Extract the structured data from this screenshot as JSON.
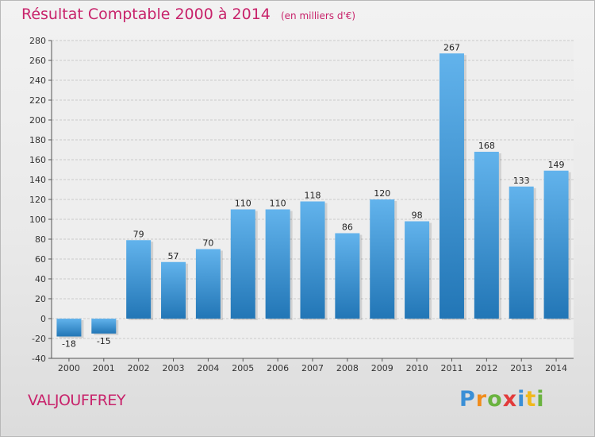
{
  "header": {
    "title": "Résultat Comptable 2000 à 2014",
    "unit": "(en milliers d'€)"
  },
  "footer": {
    "place_name": "VALJOUFFREY",
    "logo_letters": [
      "P",
      "r",
      "o",
      "x",
      "i",
      "t",
      "i"
    ],
    "logo_colors": [
      "#3a8fd6",
      "#f08c1c",
      "#6ab33f",
      "#e23b3b",
      "#3a8fd6",
      "#f0b81c",
      "#6ab33f"
    ]
  },
  "colors": {
    "title": "#c8236b",
    "bar_light": "#62b3ec",
    "bar_dark": "#2276b6",
    "grid": "#c9c9c9"
  },
  "chart_data": {
    "type": "bar",
    "categories": [
      "2000",
      "2001",
      "2002",
      "2003",
      "2004",
      "2005",
      "2006",
      "2007",
      "2008",
      "2009",
      "2010",
      "2011",
      "2012",
      "2013",
      "2014"
    ],
    "values": [
      -18,
      -15,
      79,
      57,
      70,
      110,
      110,
      118,
      86,
      120,
      98,
      267,
      168,
      133,
      149
    ],
    "title": "Résultat Comptable 2000 à 2014",
    "subtitle": "(en milliers d'€)",
    "xlabel": "",
    "ylabel": "",
    "ylim": [
      -40,
      280
    ],
    "yticks": [
      -40,
      -20,
      0,
      20,
      40,
      60,
      80,
      100,
      120,
      140,
      160,
      180,
      200,
      220,
      240,
      260,
      280
    ],
    "grid": true,
    "legend": "none"
  }
}
